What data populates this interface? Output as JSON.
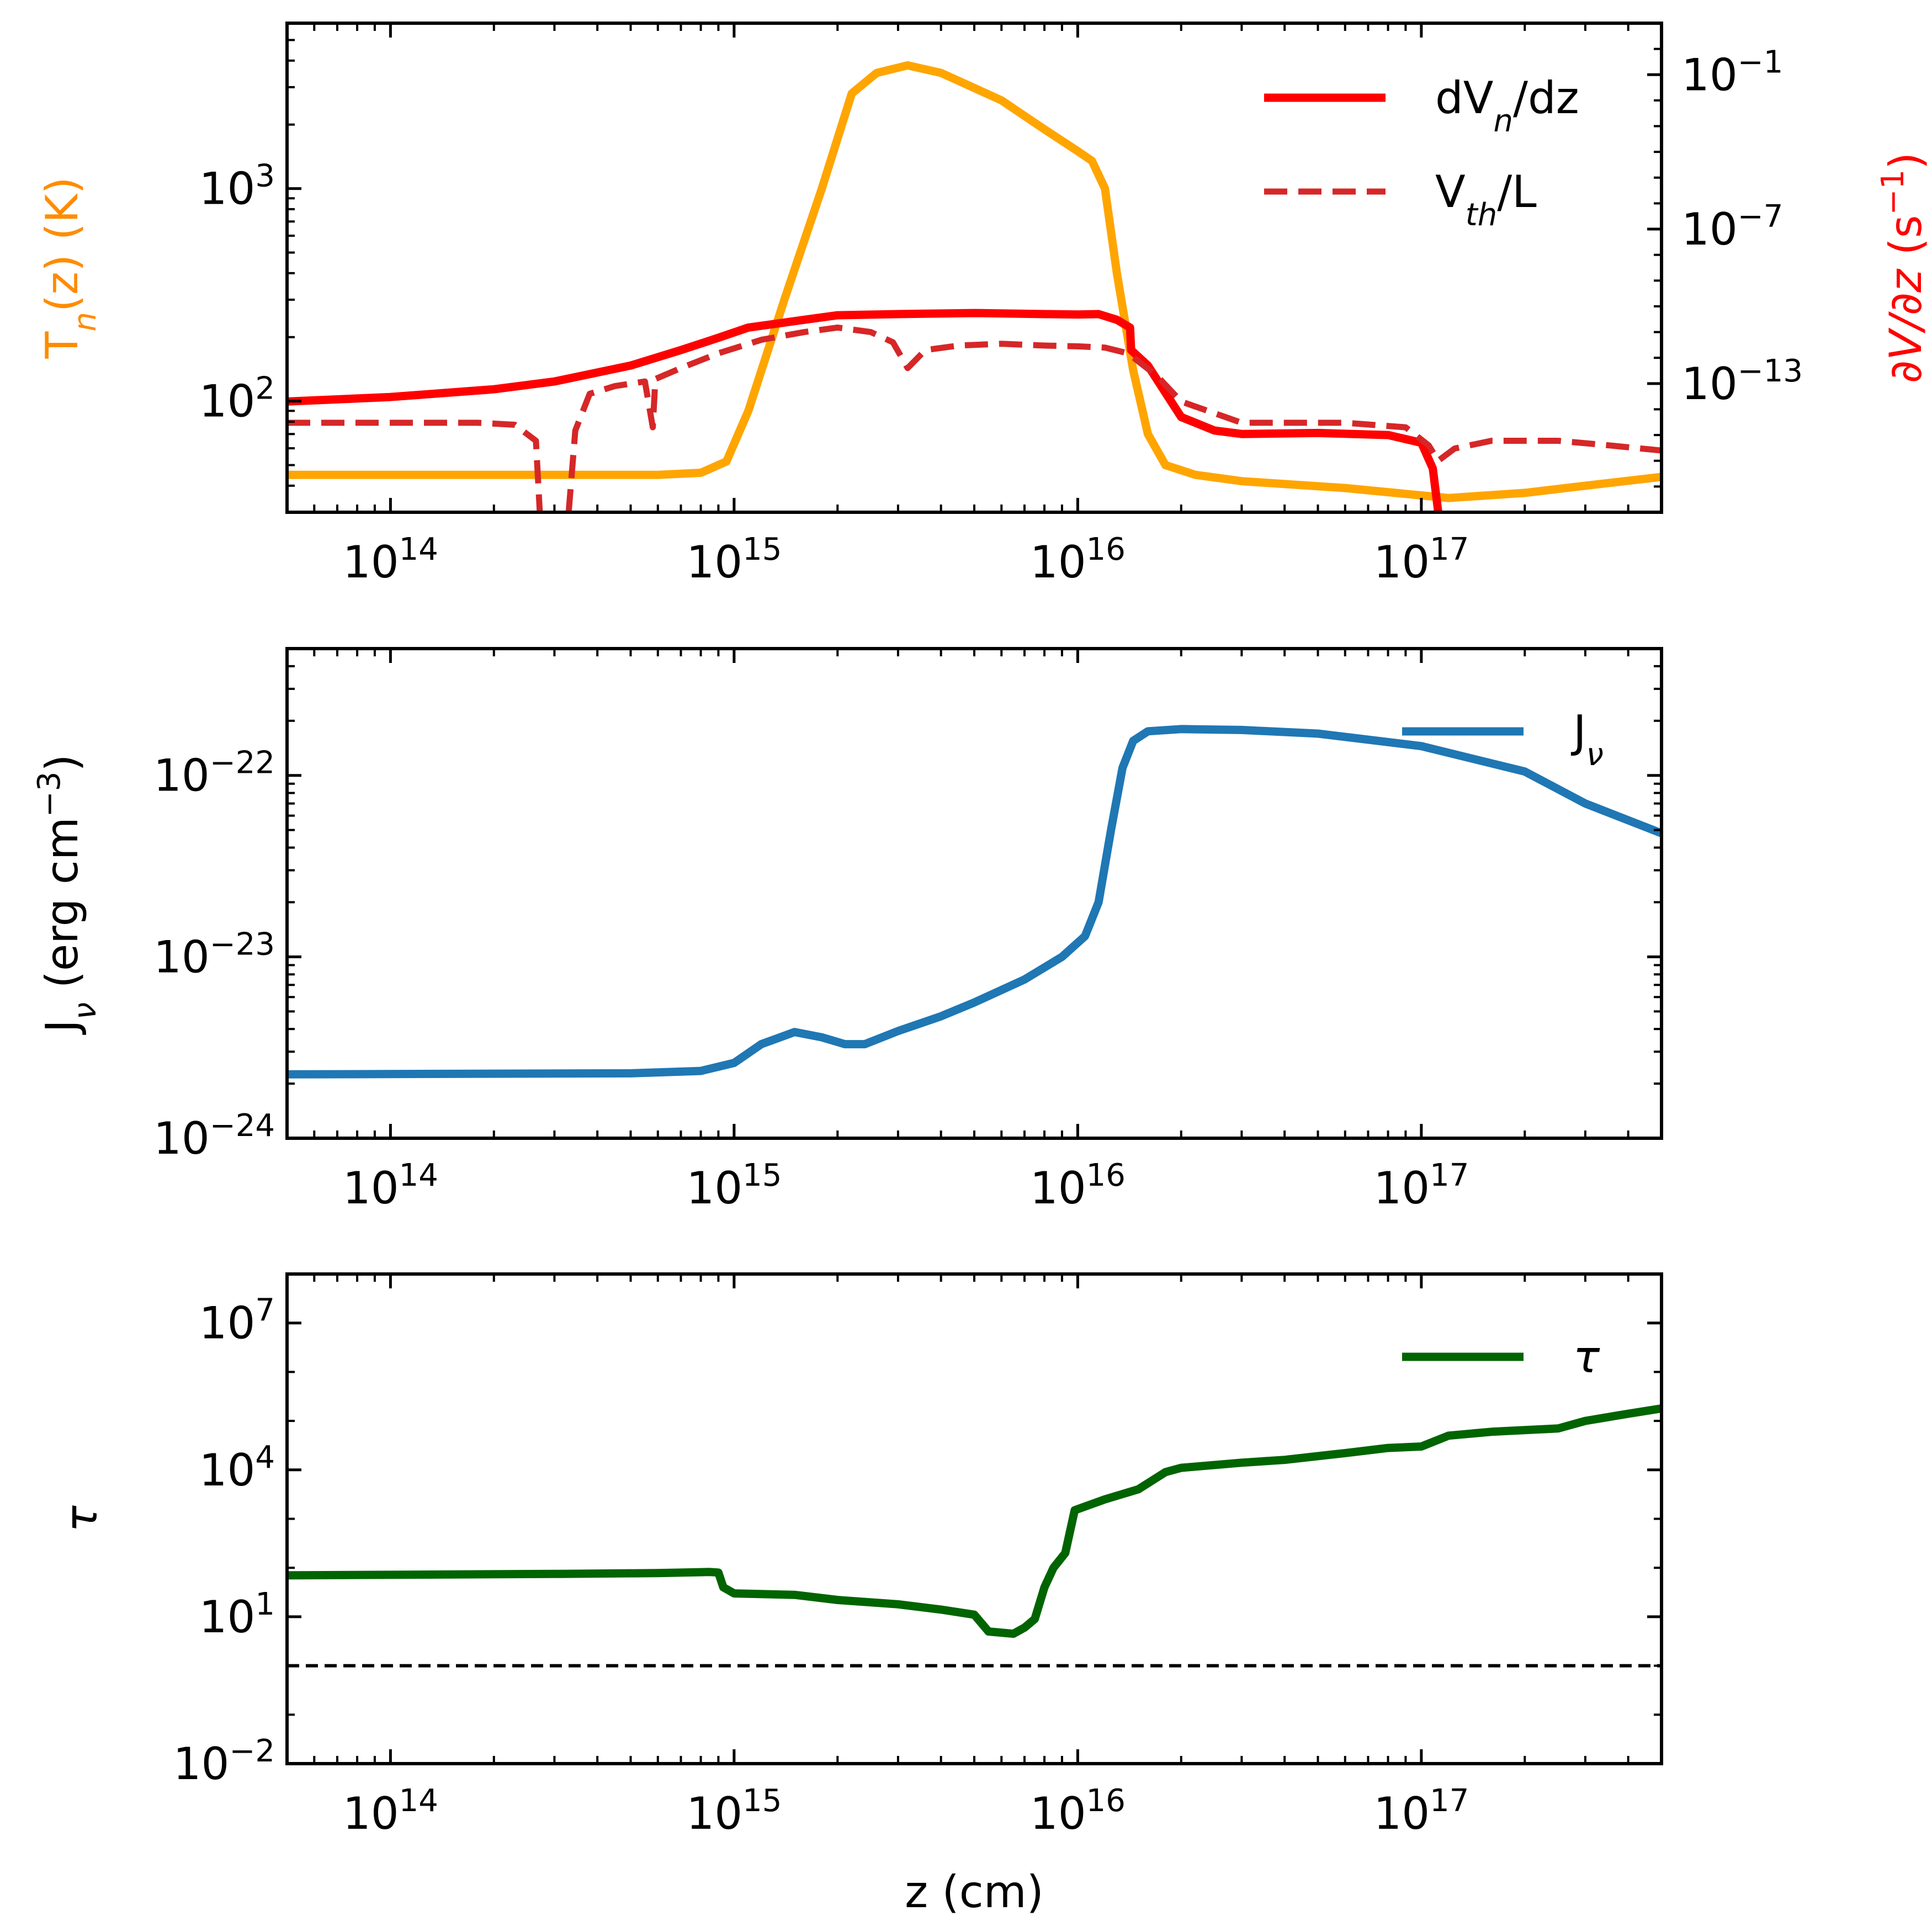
{
  "chart_data": [
    {
      "type": "line",
      "panel": "top",
      "xscale": "log",
      "xlim": [
        50000000000000.0,
        5e+17
      ],
      "x_ticks": [
        {
          "exp": 14,
          "base": "10",
          "sup": "14"
        },
        {
          "exp": 15,
          "base": "10",
          "sup": "15"
        },
        {
          "exp": 16,
          "base": "10",
          "sup": "16"
        },
        {
          "exp": 17,
          "base": "10",
          "sup": "17"
        }
      ],
      "left_axis": {
        "label_main": "T",
        "label_sub": "n",
        "label_rest": "(z) (K)",
        "label_color": "#ff8c00",
        "scale": "log",
        "ylim": [
          30,
          6000
        ],
        "ticks": [
          {
            "exp": 2,
            "base": "10",
            "sup": "2"
          },
          {
            "exp": 3,
            "base": "10",
            "sup": "3"
          }
        ]
      },
      "right_axis": {
        "label_main": "∂V/∂z",
        "label_rest": " (s",
        "label_sup": "−1",
        "label_end": ")",
        "label_color": "#ff0000",
        "scale": "log",
        "ylim": [
          1e-18,
          10.0
        ],
        "ticks": [
          {
            "exp": -13,
            "base": "10",
            "sup": "−13"
          },
          {
            "exp": -7,
            "base": "10",
            "sup": "−7"
          },
          {
            "exp": -1,
            "base": "10",
            "sup": "−1"
          }
        ]
      },
      "series": [
        {
          "name": "T_n(z)",
          "axis": "left",
          "color": "#ffa500",
          "style": "solid",
          "points": [
            [
              50000000000000.0,
              45
            ],
            [
              300000000000000.0,
              45
            ],
            [
              600000000000000.0,
              45
            ],
            [
              800000000000000.0,
              46
            ],
            [
              950000000000000.0,
              52
            ],
            [
              1100000000000000.0,
              90
            ],
            [
              1400000000000000.0,
              300
            ],
            [
              1800000000000000.0,
              1000
            ],
            [
              2200000000000000.0,
              2800
            ],
            [
              2600000000000000.0,
              3500
            ],
            [
              3200000000000000.0,
              3800
            ],
            [
              4000000000000000.0,
              3500
            ],
            [
              6000000000000000.0,
              2600
            ],
            [
              8000000000000000.0,
              1900
            ],
            [
              1e+16,
              1500
            ],
            [
              1.1e+16,
              1350
            ],
            [
              1.2e+16,
              1000
            ],
            [
              1.3e+16,
              400
            ],
            [
              1.45e+16,
              140
            ],
            [
              1.6e+16,
              70
            ],
            [
              1.8e+16,
              50
            ],
            [
              2.2e+16,
              45
            ],
            [
              3e+16,
              42
            ],
            [
              6e+16,
              39
            ],
            [
              1e+17,
              36
            ],
            [
              1.2e+17,
              35
            ],
            [
              2e+17,
              37
            ],
            [
              3e+17,
              40
            ],
            [
              5e+17,
              44
            ]
          ]
        },
        {
          "name": "dV_n/dz",
          "axis": "right",
          "color": "#ff0000",
          "style": "solid",
          "points": [
            [
              50000000000000.0,
              2e-14
            ],
            [
              100000000000000.0,
              3e-14
            ],
            [
              200000000000000.0,
              6e-14
            ],
            [
              300000000000000.0,
              1.2e-13
            ],
            [
              500000000000000.0,
              5e-13
            ],
            [
              700000000000000.0,
              2e-12
            ],
            [
              900000000000000.0,
              6e-12
            ],
            [
              1100000000000000.0,
              1.5e-11
            ],
            [
              1600000000000000.0,
              3e-11
            ],
            [
              2000000000000000.0,
              4.5e-11
            ],
            [
              3000000000000000.0,
              5e-11
            ],
            [
              5000000000000000.0,
              5.5e-11
            ],
            [
              8000000000000000.0,
              5e-11
            ],
            [
              1e+16,
              4.8e-11
            ],
            [
              1.15e+16,
              5e-11
            ],
            [
              1.3e+16,
              3e-11
            ],
            [
              1.42e+16,
              1.5e-11
            ],
            [
              1.43e+16,
              2e-12
            ],
            [
              1.6e+16,
              5e-13
            ],
            [
              2e+16,
              5e-15
            ],
            [
              2.5e+16,
              1.5e-15
            ],
            [
              3e+16,
              1.1e-15
            ],
            [
              5e+16,
              1.2e-15
            ],
            [
              8e+16,
              1e-15
            ],
            [
              1e+17,
              5e-16
            ],
            [
              1.08e+17,
              5e-17
            ],
            [
              1.12e+17,
              1e-18
            ]
          ]
        },
        {
          "name": "V_th/L",
          "axis": "right",
          "color": "#d62728",
          "style": "dashed",
          "points": [
            [
              50000000000000.0,
              3e-15
            ],
            [
              100000000000000.0,
              3e-15
            ],
            [
              180000000000000.0,
              3e-15
            ],
            [
              230000000000000.0,
              2.5e-15
            ],
            [
              265000000000000.0,
              6e-16
            ],
            [
              272000000000000.0,
              1e-18
            ],
            null,
            [
              330000000000000.0,
              1e-18
            ],
            [
              345000000000000.0,
              1.5e-15
            ],
            [
              380000000000000.0,
              4e-14
            ],
            [
              450000000000000.0,
              8e-14
            ],
            [
              550000000000000.0,
              1.2e-13
            ],
            [
              580000000000000.0,
              2e-15
            ],
            [
              590000000000000.0,
              1.5e-13
            ],
            [
              700000000000000.0,
              4e-13
            ],
            [
              900000000000000.0,
              1.5e-12
            ],
            [
              1200000000000000.0,
              5e-12
            ],
            [
              1600000000000000.0,
              1e-11
            ],
            [
              2000000000000000.0,
              1.5e-11
            ],
            [
              2500000000000000.0,
              1e-11
            ],
            [
              2900000000000000.0,
              4e-12
            ],
            [
              3200000000000000.0,
              4e-13
            ],
            [
              3600000000000000.0,
              2e-12
            ],
            [
              4500000000000000.0,
              3e-12
            ],
            [
              6000000000000000.0,
              3.5e-12
            ],
            [
              8000000000000000.0,
              3e-12
            ],
            [
              1e+16,
              2.8e-12
            ],
            [
              1.2e+16,
              2.5e-12
            ],
            [
              1.4e+16,
              1.5e-12
            ],
            [
              1.7e+16,
              2e-13
            ],
            [
              2e+16,
              2e-14
            ],
            [
              3e+16,
              3e-15
            ],
            [
              6e+16,
              3e-15
            ],
            [
              9e+16,
              2e-15
            ],
            [
              1.05e+17,
              4e-16
            ],
            [
              1.12e+17,
              1e-16
            ],
            [
              1.25e+17,
              3e-16
            ],
            [
              1.6e+17,
              6e-16
            ],
            [
              2.5e+17,
              6e-16
            ],
            [
              3.5e+17,
              4e-16
            ],
            [
              5e+17,
              2.5e-16
            ]
          ]
        }
      ],
      "legend": {
        "placement": "top-right",
        "entries": [
          {
            "main": "dV",
            "sub": "n",
            "rest": "/dz",
            "color": "#ff0000",
            "style": "solid"
          },
          {
            "main": "V",
            "sub": "th",
            "rest": "/L",
            "color": "#d62728",
            "style": "dashed"
          }
        ]
      }
    },
    {
      "type": "line",
      "panel": "middle",
      "xscale": "log",
      "xlim": [
        50000000000000.0,
        5e+17
      ],
      "x_ticks": [
        {
          "exp": 14,
          "base": "10",
          "sup": "14"
        },
        {
          "exp": 15,
          "base": "10",
          "sup": "15"
        },
        {
          "exp": 16,
          "base": "10",
          "sup": "16"
        },
        {
          "exp": 17,
          "base": "10",
          "sup": "17"
        }
      ],
      "left_axis": {
        "label_main": "J",
        "label_sub": "ν",
        "label_rest": " (erg cm",
        "label_sup": "−3",
        "label_end": ")",
        "label_color": "#000000",
        "scale": "log",
        "ylim": [
          1e-24,
          5e-22
        ],
        "ticks": [
          {
            "exp": -24,
            "base": "10",
            "sup": "−24"
          },
          {
            "exp": -23,
            "base": "10",
            "sup": "−23"
          },
          {
            "exp": -22,
            "base": "10",
            "sup": "−22"
          }
        ]
      },
      "series": [
        {
          "name": "J_ν",
          "axis": "left",
          "color": "#1f77b4",
          "style": "solid",
          "points": [
            [
              50000000000000.0,
              2.25e-24
            ],
            [
              500000000000000.0,
              2.28e-24
            ],
            [
              800000000000000.0,
              2.35e-24
            ],
            [
              1000000000000000.0,
              2.6e-24
            ],
            [
              1200000000000000.0,
              3.3e-24
            ],
            [
              1500000000000000.0,
              3.85e-24
            ],
            [
              1800000000000000.0,
              3.6e-24
            ],
            [
              2100000000000000.0,
              3.3e-24
            ],
            [
              2400000000000000.0,
              3.3e-24
            ],
            [
              3000000000000000.0,
              3.9e-24
            ],
            [
              4000000000000000.0,
              4.7e-24
            ],
            [
              5000000000000000.0,
              5.6e-24
            ],
            [
              7000000000000000.0,
              7.5e-24
            ],
            [
              9000000000000000.0,
              1e-23
            ],
            [
              1.05e+16,
              1.3e-23
            ],
            [
              1.15e+16,
              2e-23
            ],
            [
              1.25e+16,
              5e-23
            ],
            [
              1.35e+16,
              1.1e-22
            ],
            [
              1.45e+16,
              1.55e-22
            ],
            [
              1.6e+16,
              1.75e-22
            ],
            [
              2e+16,
              1.8e-22
            ],
            [
              3e+16,
              1.78e-22
            ],
            [
              5e+16,
              1.7e-22
            ],
            [
              1e+17,
              1.45e-22
            ],
            [
              2e+17,
              1.05e-22
            ],
            [
              3e+17,
              7e-23
            ],
            [
              5e+17,
              4.8e-23
            ]
          ]
        }
      ],
      "legend": {
        "placement": "top-right",
        "entries": [
          {
            "main": "J",
            "sub": "ν",
            "rest": "",
            "color": "#1f77b4",
            "style": "solid"
          }
        ]
      }
    },
    {
      "type": "line",
      "panel": "bottom",
      "xscale": "log",
      "xlim": [
        50000000000000.0,
        5e+17
      ],
      "xlabel": "z (cm)",
      "x_ticks": [
        {
          "exp": 14,
          "base": "10",
          "sup": "14"
        },
        {
          "exp": 15,
          "base": "10",
          "sup": "15"
        },
        {
          "exp": 16,
          "base": "10",
          "sup": "16"
        },
        {
          "exp": 17,
          "base": "10",
          "sup": "17"
        }
      ],
      "left_axis": {
        "label_main": "τ",
        "label_color": "#000000",
        "scale": "log",
        "ylim": [
          0.01,
          100000000.0
        ],
        "ticks": [
          {
            "exp": -2,
            "base": "10",
            "sup": "−2"
          },
          {
            "exp": 1,
            "base": "10",
            "sup": "1"
          },
          {
            "exp": 4,
            "base": "10",
            "sup": "4"
          },
          {
            "exp": 7,
            "base": "10",
            "sup": "7"
          }
        ]
      },
      "reference_line": {
        "y": 1,
        "style": "dashed",
        "color": "#000000"
      },
      "series": [
        {
          "name": "τ",
          "axis": "left",
          "color": "#006400",
          "style": "solid",
          "points": [
            [
              50000000000000.0,
              70
            ],
            [
              300000000000000.0,
              75
            ],
            [
              600000000000000.0,
              78
            ],
            [
              850000000000000.0,
              82
            ],
            [
              900000000000000.0,
              80
            ],
            [
              930000000000000.0,
              40
            ],
            [
              1000000000000000.0,
              30
            ],
            [
              1500000000000000.0,
              28
            ],
            [
              2000000000000000.0,
              22
            ],
            [
              3000000000000000.0,
              18
            ],
            [
              4000000000000000.0,
              14
            ],
            [
              5000000000000000.0,
              11
            ],
            [
              5500000000000000.0,
              5
            ],
            [
              6500000000000000.0,
              4.5
            ],
            [
              7000000000000000.0,
              6
            ],
            [
              7500000000000000.0,
              9
            ],
            [
              8000000000000000.0,
              40
            ],
            [
              8500000000000000.0,
              100
            ],
            [
              9200000000000000.0,
              200
            ],
            [
              9800000000000000.0,
              1500
            ],
            [
              1.2e+16,
              2500
            ],
            [
              1.5e+16,
              4000
            ],
            [
              1.8e+16,
              9000
            ],
            [
              2e+16,
              11000
            ],
            [
              3e+16,
              14000
            ],
            [
              4e+16,
              16000
            ],
            [
              6e+16,
              22000
            ],
            [
              8e+16,
              28000
            ],
            [
              1e+17,
              30000
            ],
            [
              1.2e+17,
              50000
            ],
            [
              1.6e+17,
              60000
            ],
            [
              2.5e+17,
              70000
            ],
            [
              3e+17,
              100000
            ],
            [
              4e+17,
              140000
            ],
            [
              5e+17,
              180000
            ]
          ]
        }
      ],
      "legend": {
        "placement": "top-right",
        "entries": [
          {
            "main": "τ",
            "sub": "",
            "rest": "",
            "color": "#006400",
            "style": "solid"
          }
        ]
      }
    }
  ]
}
